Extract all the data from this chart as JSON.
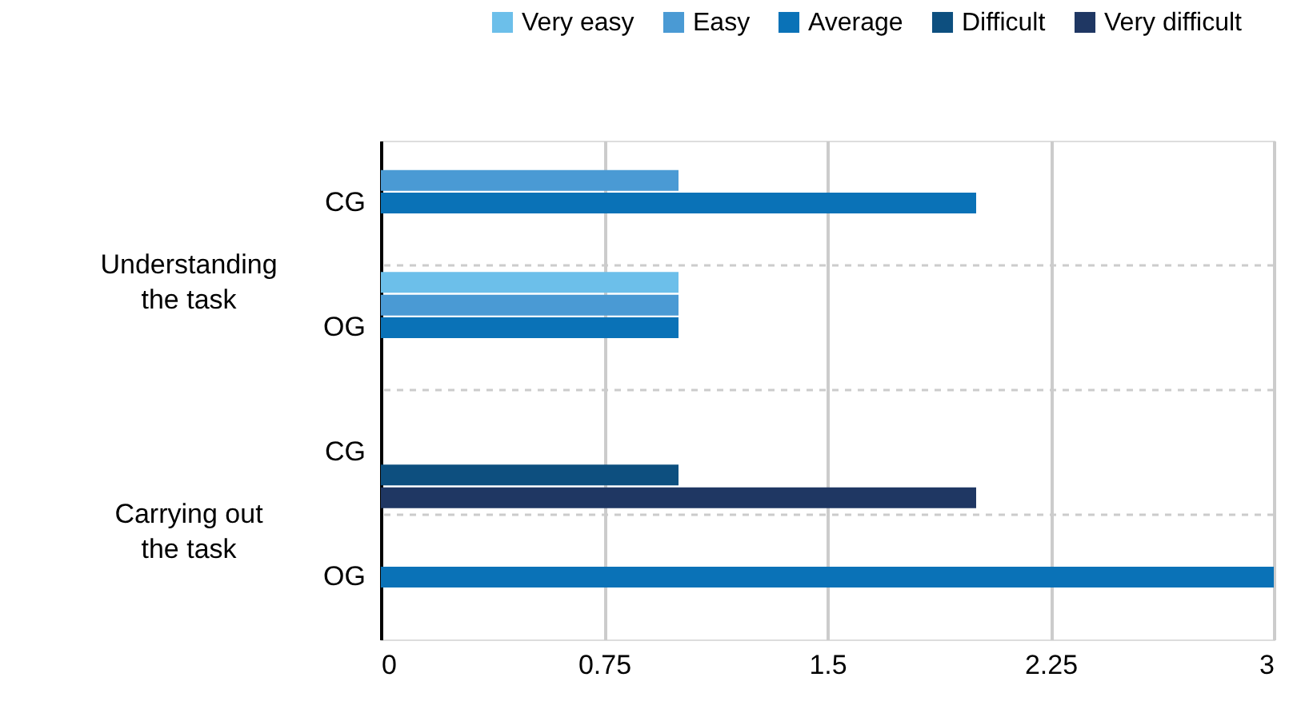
{
  "chart_data": {
    "type": "bar",
    "orientation": "horizontal",
    "categories": [
      "CG",
      "OG",
      "CG",
      "OG"
    ],
    "series": [
      {
        "name": "Very easy",
        "color": "#6cbfea",
        "values": [
          null,
          1,
          null,
          null
        ]
      },
      {
        "name": "Easy",
        "color": "#4a9ad4",
        "values": [
          1,
          1,
          null,
          null
        ]
      },
      {
        "name": "Average",
        "color": "#0a72b7",
        "values": [
          2,
          1,
          null,
          3
        ]
      },
      {
        "name": "Difficult",
        "color": "#0d4f7f",
        "values": [
          null,
          null,
          1,
          null
        ]
      },
      {
        "name": "Very difficult",
        "color": "#1f3763",
        "values": [
          null,
          null,
          2,
          null
        ]
      }
    ],
    "xlim": [
      0,
      3
    ],
    "xticks": [
      0,
      0.75,
      1.5,
      2.25,
      3
    ],
    "annotations": [
      "Understanding\nthe task",
      "Carrying out\nthe task"
    ],
    "grid": true,
    "legend": "top right"
  }
}
